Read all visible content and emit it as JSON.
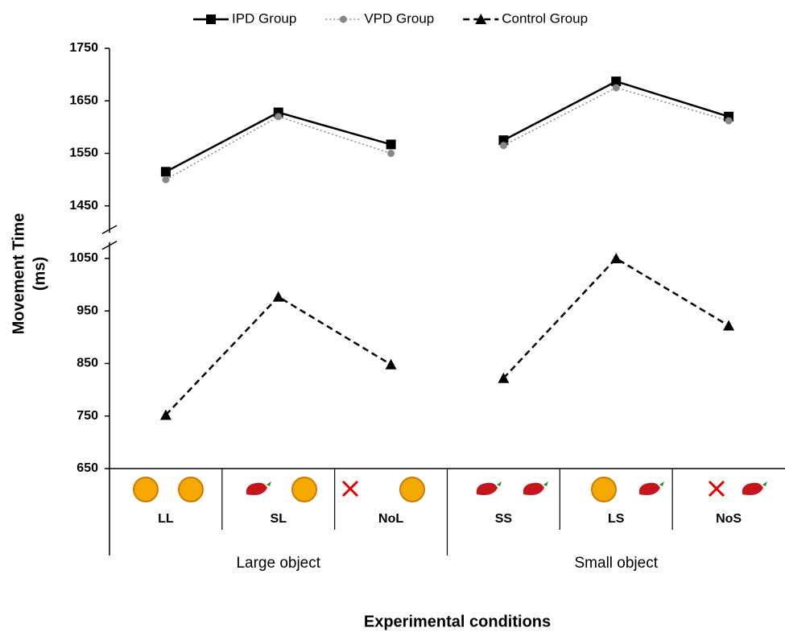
{
  "chart_data": {
    "type": "line",
    "y_label_lines": [
      "Movement Time",
      "(ms)"
    ],
    "x_label": "Experimental conditions",
    "groups": [
      {
        "name": "Large object",
        "categories": [
          "LL",
          "SL",
          "NoL"
        ]
      },
      {
        "name": "Small object",
        "categories": [
          "SS",
          "LS",
          "NoS"
        ]
      }
    ],
    "series": [
      {
        "name": "IPD Group",
        "color": "#000000",
        "marker": "square",
        "dash": "solid",
        "values": [
          1515,
          1628,
          1567,
          1575,
          1687,
          1620
        ]
      },
      {
        "name": "VPD Group",
        "color": "#888888",
        "marker": "circle",
        "dash": "dotted",
        "values": [
          1500,
          1620,
          1550,
          1565,
          1675,
          1612
        ]
      },
      {
        "name": "Control Group",
        "color": "#000000",
        "marker": "triangle",
        "dash": "dashed",
        "values": [
          752,
          977,
          848,
          822,
          1050,
          922
        ]
      }
    ],
    "ylim": [
      650,
      1750
    ],
    "yticks": [
      650,
      750,
      850,
      950,
      1050,
      1450,
      1550,
      1650,
      1750
    ],
    "axis_break": true,
    "legend": "top"
  }
}
